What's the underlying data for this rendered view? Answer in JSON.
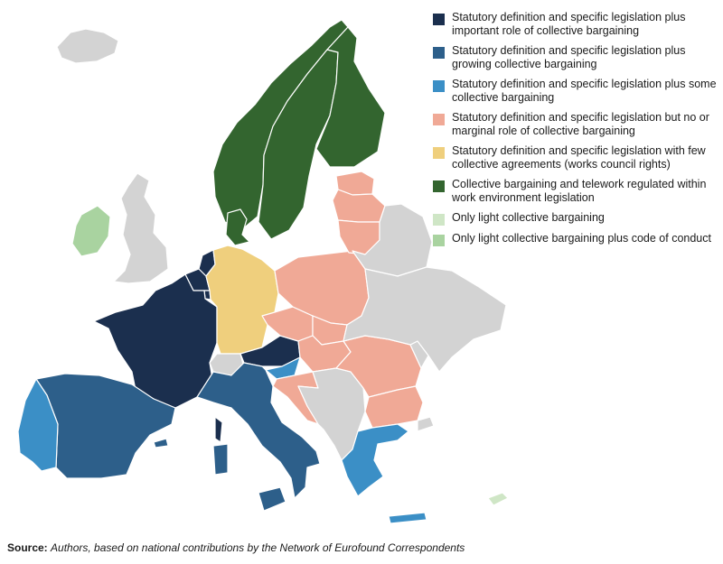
{
  "colors": {
    "important": "#1b2f4e",
    "growing": "#2d5f8a",
    "some": "#3b8fc6",
    "marginal": "#f0a996",
    "few": "#efcf7d",
    "telework": "#33652f",
    "light": "#cfe6c6",
    "light_code": "#a9d3a0",
    "no_data": "#d3d3d3"
  },
  "legend": [
    {
      "key": "important",
      "label": "Statutory definition and specific legislation plus important role of collective bargaining"
    },
    {
      "key": "growing",
      "label": "Statutory definition and specific legislation plus growing collective bargaining"
    },
    {
      "key": "some",
      "label": "Statutory definition and specific legislation plus some collective bargaining"
    },
    {
      "key": "marginal",
      "label": "Statutory definition and specific legislation but no or marginal role of collective bargaining"
    },
    {
      "key": "few",
      "label": "Statutory definition and specific legislation with few collective agreements (works council rights)"
    },
    {
      "key": "telework",
      "label": "Collective bargaining and telework regulated within work environment legislation"
    },
    {
      "key": "light",
      "label": "Only light collective bargaining"
    },
    {
      "key": "light_code",
      "label": "Only light collective bargaining plus code of conduct"
    }
  ],
  "countries": [
    {
      "name": "Iceland",
      "category": "no_data"
    },
    {
      "name": "Norway",
      "category": "telework"
    },
    {
      "name": "Sweden",
      "category": "telework"
    },
    {
      "name": "Finland",
      "category": "telework"
    },
    {
      "name": "Denmark",
      "category": "telework"
    },
    {
      "name": "Ireland",
      "category": "light_code"
    },
    {
      "name": "United Kingdom",
      "category": "no_data"
    },
    {
      "name": "France",
      "category": "important"
    },
    {
      "name": "Belgium",
      "category": "important"
    },
    {
      "name": "Netherlands",
      "category": "important"
    },
    {
      "name": "Luxembourg",
      "category": "important"
    },
    {
      "name": "Austria",
      "category": "important"
    },
    {
      "name": "Germany",
      "category": "few"
    },
    {
      "name": "Spain",
      "category": "growing"
    },
    {
      "name": "Italy",
      "category": "growing"
    },
    {
      "name": "Portugal",
      "category": "some"
    },
    {
      "name": "Slovenia",
      "category": "some"
    },
    {
      "name": "Greece",
      "category": "some"
    },
    {
      "name": "Estonia",
      "category": "marginal"
    },
    {
      "name": "Latvia",
      "category": "marginal"
    },
    {
      "name": "Lithuania",
      "category": "marginal"
    },
    {
      "name": "Poland",
      "category": "marginal"
    },
    {
      "name": "Czechia",
      "category": "marginal"
    },
    {
      "name": "Slovakia",
      "category": "marginal"
    },
    {
      "name": "Hungary",
      "category": "marginal"
    },
    {
      "name": "Romania",
      "category": "marginal"
    },
    {
      "name": "Bulgaria",
      "category": "marginal"
    },
    {
      "name": "Croatia",
      "category": "marginal"
    },
    {
      "name": "Cyprus",
      "category": "light"
    },
    {
      "name": "Switzerland",
      "category": "no_data"
    },
    {
      "name": "Belarus",
      "category": "no_data"
    },
    {
      "name": "Ukraine",
      "category": "no_data"
    },
    {
      "name": "Moldova",
      "category": "no_data"
    },
    {
      "name": "Western Balkans",
      "category": "no_data"
    },
    {
      "name": "Turkey",
      "category": "no_data"
    }
  ],
  "source": {
    "title": "Source:",
    "text": "Authors, based on national contributions by the Network of Eurofound Correspondents"
  }
}
